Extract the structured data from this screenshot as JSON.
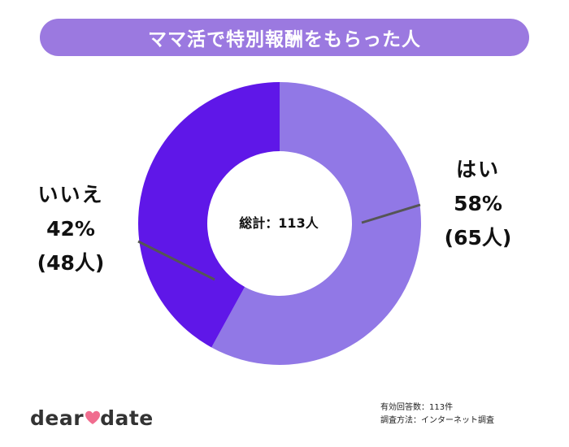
{
  "title": "ママ活で特別報酬をもらった人",
  "chart_data": {
    "type": "pie",
    "donut": true,
    "title": "ママ活で特別報酬をもらった人",
    "total_label": "総計：113人",
    "slices": [
      {
        "name": "はい",
        "percent": 58,
        "count_label": "(65人)",
        "percent_label": "58%",
        "count": 65,
        "color": "#9178e6"
      },
      {
        "name": "いいえ",
        "percent": 42,
        "count_label": "(48人)",
        "percent_label": "42%",
        "count": 48,
        "color": "#5f17e8"
      }
    ]
  },
  "footer": {
    "respondents": "有効回答数：113件",
    "method": "調査方法：インターネット調査"
  },
  "logo": {
    "part1": "dear",
    "part2": "date",
    "heart_color": "#f06d8f"
  }
}
